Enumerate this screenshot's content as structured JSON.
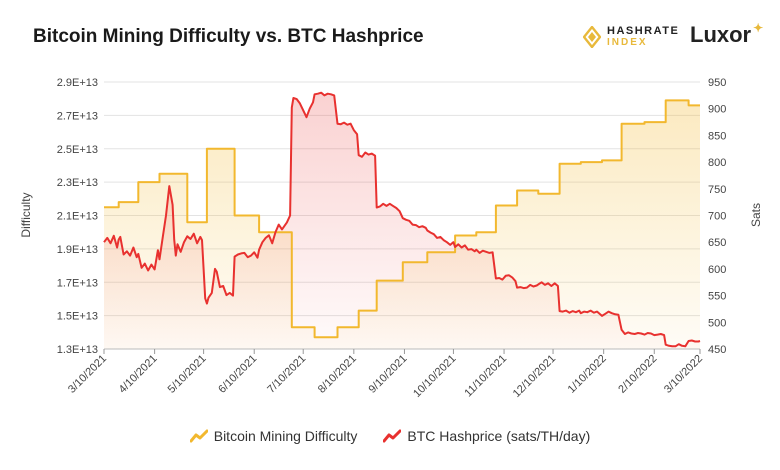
{
  "chart_data": {
    "type": "line",
    "title": "Bitcoin Mining Difficulty vs. BTC Hashprice",
    "ylabel_left": "Difficulty",
    "ylabel_right": "Sats",
    "yleft_ticks": [
      "1.3E+13",
      "1.5E+13",
      "1.7E+13",
      "1.9E+13",
      "2.1E+13",
      "2.3E+13",
      "2.5E+13",
      "2.7E+13",
      "2.9E+13"
    ],
    "yleft_lim": [
      13000000000000.0,
      29000000000000.0
    ],
    "yright_ticks": [
      "450",
      "500",
      "550",
      "600",
      "650",
      "700",
      "750",
      "800",
      "850",
      "900",
      "950"
    ],
    "yright_lim": [
      450,
      950
    ],
    "x_ticks": [
      {
        "label": "3/10/2021",
        "date": "2021-03-10"
      },
      {
        "label": "4/10/2021",
        "date": "2021-04-10"
      },
      {
        "label": "5/10/2021",
        "date": "2021-05-10"
      },
      {
        "label": "6/10/2021",
        "date": "2021-06-10"
      },
      {
        "label": "7/10/2021",
        "date": "2021-07-10"
      },
      {
        "label": "8/10/2021",
        "date": "2021-08-10"
      },
      {
        "label": "9/10/2021",
        "date": "2021-09-10"
      },
      {
        "label": "10/10/2021",
        "date": "2021-10-10"
      },
      {
        "label": "11/10/2021",
        "date": "2021-11-10"
      },
      {
        "label": "12/10/2021",
        "date": "2021-12-10"
      },
      {
        "label": "1/10/2022",
        "date": "2022-01-10"
      },
      {
        "label": "2/10/2022",
        "date": "2022-02-10"
      },
      {
        "label": "3/10/2022",
        "date": "2022-03-10"
      }
    ],
    "x_range": [
      "2021-03-10",
      "2022-03-10"
    ],
    "grid": "horizontal",
    "legend_position": "bottom",
    "series": [
      {
        "name": "Bitcoin Mining Difficulty",
        "axis": "left",
        "color": "#f2b82e",
        "step": true,
        "points": [
          [
            "2021-03-10",
            21500000000000.0
          ],
          [
            "2021-03-19",
            21500000000000.0
          ],
          [
            "2021-03-19",
            21800000000000.0
          ],
          [
            "2021-03-31",
            21800000000000.0
          ],
          [
            "2021-03-31",
            23000000000000.0
          ],
          [
            "2021-04-13",
            23000000000000.0
          ],
          [
            "2021-04-13",
            23500000000000.0
          ],
          [
            "2021-04-30",
            23500000000000.0
          ],
          [
            "2021-04-30",
            20600000000000.0
          ],
          [
            "2021-05-12",
            20600000000000.0
          ],
          [
            "2021-05-12",
            25000000000000.0
          ],
          [
            "2021-05-29",
            25000000000000.0
          ],
          [
            "2021-05-29",
            21000000000000.0
          ],
          [
            "2021-06-13",
            21000000000000.0
          ],
          [
            "2021-06-13",
            20000000000000.0
          ],
          [
            "2021-07-03",
            20000000000000.0
          ],
          [
            "2021-07-03",
            14300000000000.0
          ],
          [
            "2021-07-17",
            14300000000000.0
          ],
          [
            "2021-07-17",
            13700000000000.0
          ],
          [
            "2021-07-31",
            13700000000000.0
          ],
          [
            "2021-07-31",
            14300000000000.0
          ],
          [
            "2021-08-13",
            14300000000000.0
          ],
          [
            "2021-08-13",
            15300000000000.0
          ],
          [
            "2021-08-24",
            15300000000000.0
          ],
          [
            "2021-08-24",
            17100000000000.0
          ],
          [
            "2021-09-09",
            17100000000000.0
          ],
          [
            "2021-09-09",
            18200000000000.0
          ],
          [
            "2021-09-24",
            18200000000000.0
          ],
          [
            "2021-09-24",
            18800000000000.0
          ],
          [
            "2021-10-11",
            18800000000000.0
          ],
          [
            "2021-10-11",
            19800000000000.0
          ],
          [
            "2021-10-24",
            19800000000000.0
          ],
          [
            "2021-10-24",
            20000000000000.0
          ],
          [
            "2021-11-05",
            20000000000000.0
          ],
          [
            "2021-11-05",
            21600000000000.0
          ],
          [
            "2021-11-18",
            21600000000000.0
          ],
          [
            "2021-11-18",
            22500000000000.0
          ],
          [
            "2021-12-01",
            22500000000000.0
          ],
          [
            "2021-12-01",
            22300000000000.0
          ],
          [
            "2021-12-14",
            22300000000000.0
          ],
          [
            "2021-12-14",
            24100000000000.0
          ],
          [
            "2021-12-27",
            24100000000000.0
          ],
          [
            "2021-12-27",
            24200000000000.0
          ],
          [
            "2022-01-09",
            24200000000000.0
          ],
          [
            "2022-01-09",
            24300000000000.0
          ],
          [
            "2022-01-21",
            24300000000000.0
          ],
          [
            "2022-01-21",
            26500000000000.0
          ],
          [
            "2022-02-04",
            26500000000000.0
          ],
          [
            "2022-02-04",
            26600000000000.0
          ],
          [
            "2022-02-17",
            26600000000000.0
          ],
          [
            "2022-02-17",
            27900000000000.0
          ],
          [
            "2022-03-03",
            27900000000000.0
          ],
          [
            "2022-03-03",
            27600000000000.0
          ],
          [
            "2022-03-10",
            27600000000000.0
          ]
        ]
      },
      {
        "name": "BTC Hashprice (sats/TH/day)",
        "axis": "right",
        "color": "#e8312f",
        "step": false,
        "points": [
          [
            "2021-03-10",
            650
          ],
          [
            "2021-03-12",
            658
          ],
          [
            "2021-03-14",
            648
          ],
          [
            "2021-03-16",
            662
          ],
          [
            "2021-03-18",
            640
          ],
          [
            "2021-03-19",
            655
          ],
          [
            "2021-03-20",
            660
          ],
          [
            "2021-03-22",
            627
          ],
          [
            "2021-03-24",
            633
          ],
          [
            "2021-03-26",
            625
          ],
          [
            "2021-03-28",
            640
          ],
          [
            "2021-03-30",
            622
          ],
          [
            "2021-03-31",
            628
          ],
          [
            "2021-04-02",
            602
          ],
          [
            "2021-04-04",
            610
          ],
          [
            "2021-04-06",
            597
          ],
          [
            "2021-04-08",
            608
          ],
          [
            "2021-04-10",
            599
          ],
          [
            "2021-04-12",
            635
          ],
          [
            "2021-04-13",
            618
          ],
          [
            "2021-04-15",
            660
          ],
          [
            "2021-04-17",
            700
          ],
          [
            "2021-04-19",
            755
          ],
          [
            "2021-04-21",
            720
          ],
          [
            "2021-04-22",
            655
          ],
          [
            "2021-04-23",
            625
          ],
          [
            "2021-04-24",
            646
          ],
          [
            "2021-04-26",
            632
          ],
          [
            "2021-04-28",
            650
          ],
          [
            "2021-04-30",
            661
          ],
          [
            "2021-05-02",
            656
          ],
          [
            "2021-05-04",
            666
          ],
          [
            "2021-05-06",
            648
          ],
          [
            "2021-05-08",
            660
          ],
          [
            "2021-05-09",
            654
          ],
          [
            "2021-05-10",
            600
          ],
          [
            "2021-05-11",
            545
          ],
          [
            "2021-05-12",
            535
          ],
          [
            "2021-05-13",
            546
          ],
          [
            "2021-05-15",
            555
          ],
          [
            "2021-05-17",
            600
          ],
          [
            "2021-05-18",
            595
          ],
          [
            "2021-05-20",
            566
          ],
          [
            "2021-05-22",
            568
          ],
          [
            "2021-05-24",
            551
          ],
          [
            "2021-05-26",
            555
          ],
          [
            "2021-05-28",
            550
          ],
          [
            "2021-05-29",
            623
          ],
          [
            "2021-05-31",
            627
          ],
          [
            "2021-06-02",
            629
          ],
          [
            "2021-06-04",
            630
          ],
          [
            "2021-06-06",
            622
          ],
          [
            "2021-06-08",
            625
          ],
          [
            "2021-06-10",
            631
          ],
          [
            "2021-06-12",
            621
          ],
          [
            "2021-06-13",
            636
          ],
          [
            "2021-06-15",
            650
          ],
          [
            "2021-06-17",
            658
          ],
          [
            "2021-06-19",
            663
          ],
          [
            "2021-06-21",
            648
          ],
          [
            "2021-06-23",
            669
          ],
          [
            "2021-06-25",
            683
          ],
          [
            "2021-06-27",
            674
          ],
          [
            "2021-06-30",
            687
          ],
          [
            "2021-07-02",
            700
          ],
          [
            "2021-07-03",
            902
          ],
          [
            "2021-07-04",
            920
          ],
          [
            "2021-07-06",
            918
          ],
          [
            "2021-07-08",
            910
          ],
          [
            "2021-07-10",
            897
          ],
          [
            "2021-07-12",
            884
          ],
          [
            "2021-07-14",
            900
          ],
          [
            "2021-07-16",
            912
          ],
          [
            "2021-07-17",
            927
          ],
          [
            "2021-07-19",
            928
          ],
          [
            "2021-07-21",
            930
          ],
          [
            "2021-07-23",
            925
          ],
          [
            "2021-07-25",
            928
          ],
          [
            "2021-07-27",
            927
          ],
          [
            "2021-07-29",
            925
          ],
          [
            "2021-07-31",
            872
          ],
          [
            "2021-08-02",
            871
          ],
          [
            "2021-08-04",
            874
          ],
          [
            "2021-08-06",
            870
          ],
          [
            "2021-08-08",
            872
          ],
          [
            "2021-08-10",
            860
          ],
          [
            "2021-08-12",
            852
          ],
          [
            "2021-08-13",
            813
          ],
          [
            "2021-08-15",
            810
          ],
          [
            "2021-08-17",
            818
          ],
          [
            "2021-08-19",
            814
          ],
          [
            "2021-08-21",
            816
          ],
          [
            "2021-08-23",
            812
          ],
          [
            "2021-08-24",
            715
          ],
          [
            "2021-08-26",
            717
          ],
          [
            "2021-08-28",
            722
          ],
          [
            "2021-08-30",
            718
          ],
          [
            "2021-09-01",
            722
          ],
          [
            "2021-09-03",
            718
          ],
          [
            "2021-09-05",
            714
          ],
          [
            "2021-09-07",
            708
          ],
          [
            "2021-09-09",
            695
          ],
          [
            "2021-09-11",
            692
          ],
          [
            "2021-09-13",
            690
          ],
          [
            "2021-09-15",
            683
          ],
          [
            "2021-09-17",
            682
          ],
          [
            "2021-09-19",
            678
          ],
          [
            "2021-09-21",
            680
          ],
          [
            "2021-09-23",
            677
          ],
          [
            "2021-09-24",
            672
          ],
          [
            "2021-09-26",
            668
          ],
          [
            "2021-09-28",
            665
          ],
          [
            "2021-09-30",
            658
          ],
          [
            "2021-10-02",
            660
          ],
          [
            "2021-10-04",
            654
          ],
          [
            "2021-10-06",
            650
          ],
          [
            "2021-10-08",
            645
          ],
          [
            "2021-10-10",
            650
          ],
          [
            "2021-10-11",
            641
          ],
          [
            "2021-10-13",
            646
          ],
          [
            "2021-10-15",
            640
          ],
          [
            "2021-10-17",
            644
          ],
          [
            "2021-10-19",
            636
          ],
          [
            "2021-10-21",
            637
          ],
          [
            "2021-10-23",
            633
          ],
          [
            "2021-10-24",
            636
          ],
          [
            "2021-10-26",
            630
          ],
          [
            "2021-10-28",
            634
          ],
          [
            "2021-10-30",
            632
          ],
          [
            "2021-11-01",
            630
          ],
          [
            "2021-11-03",
            631
          ],
          [
            "2021-11-05",
            582
          ],
          [
            "2021-11-07",
            583
          ],
          [
            "2021-11-09",
            580
          ],
          [
            "2021-11-11",
            587
          ],
          [
            "2021-11-13",
            588
          ],
          [
            "2021-11-15",
            584
          ],
          [
            "2021-11-17",
            577
          ],
          [
            "2021-11-18",
            565
          ],
          [
            "2021-11-20",
            566
          ],
          [
            "2021-11-22",
            564
          ],
          [
            "2021-11-24",
            565
          ],
          [
            "2021-11-26",
            570
          ],
          [
            "2021-11-28",
            567
          ],
          [
            "2021-11-30",
            569
          ],
          [
            "2021-12-01",
            571
          ],
          [
            "2021-12-03",
            575
          ],
          [
            "2021-12-05",
            570
          ],
          [
            "2021-12-07",
            573
          ],
          [
            "2021-12-09",
            568
          ],
          [
            "2021-12-11",
            573
          ],
          [
            "2021-12-13",
            568
          ],
          [
            "2021-12-14",
            521
          ],
          [
            "2021-12-16",
            520
          ],
          [
            "2021-12-18",
            522
          ],
          [
            "2021-12-20",
            518
          ],
          [
            "2021-12-22",
            521
          ],
          [
            "2021-12-24",
            519
          ],
          [
            "2021-12-26",
            522
          ],
          [
            "2021-12-27",
            517
          ],
          [
            "2021-12-29",
            520
          ],
          [
            "2021-12-31",
            519
          ],
          [
            "2022-01-02",
            522
          ],
          [
            "2022-01-04",
            518
          ],
          [
            "2022-01-06",
            520
          ],
          [
            "2022-01-09",
            512
          ],
          [
            "2022-01-11",
            516
          ],
          [
            "2022-01-13",
            520
          ],
          [
            "2022-01-15",
            517
          ],
          [
            "2022-01-17",
            515
          ],
          [
            "2022-01-19",
            514
          ],
          [
            "2022-01-21",
            486
          ],
          [
            "2022-01-23",
            478
          ],
          [
            "2022-01-25",
            481
          ],
          [
            "2022-01-27",
            479
          ],
          [
            "2022-01-29",
            478
          ],
          [
            "2022-01-31",
            480
          ],
          [
            "2022-02-02",
            479
          ],
          [
            "2022-02-04",
            477
          ],
          [
            "2022-02-06",
            480
          ],
          [
            "2022-02-08",
            479
          ],
          [
            "2022-02-10",
            476
          ],
          [
            "2022-02-12",
            477
          ],
          [
            "2022-02-14",
            478
          ],
          [
            "2022-02-16",
            476
          ],
          [
            "2022-02-17",
            458
          ],
          [
            "2022-02-19",
            456
          ],
          [
            "2022-02-21",
            455
          ],
          [
            "2022-02-23",
            455
          ],
          [
            "2022-02-25",
            459
          ],
          [
            "2022-02-27",
            456
          ],
          [
            "2022-03-01",
            455
          ],
          [
            "2022-03-03",
            465
          ],
          [
            "2022-03-05",
            466
          ],
          [
            "2022-03-07",
            464
          ],
          [
            "2022-03-09",
            464
          ],
          [
            "2022-03-10",
            465
          ]
        ]
      }
    ]
  },
  "legend": [
    {
      "label": "Bitcoin Mining Difficulty",
      "color": "#f2b82e"
    },
    {
      "label": "BTC Hashprice (sats/TH/day)",
      "color": "#e8312f"
    }
  ],
  "brand": {
    "index_line1": "HASHRATE",
    "index_line2": "INDEX",
    "luxor": "Luxor",
    "accent": "#e8b93b"
  }
}
